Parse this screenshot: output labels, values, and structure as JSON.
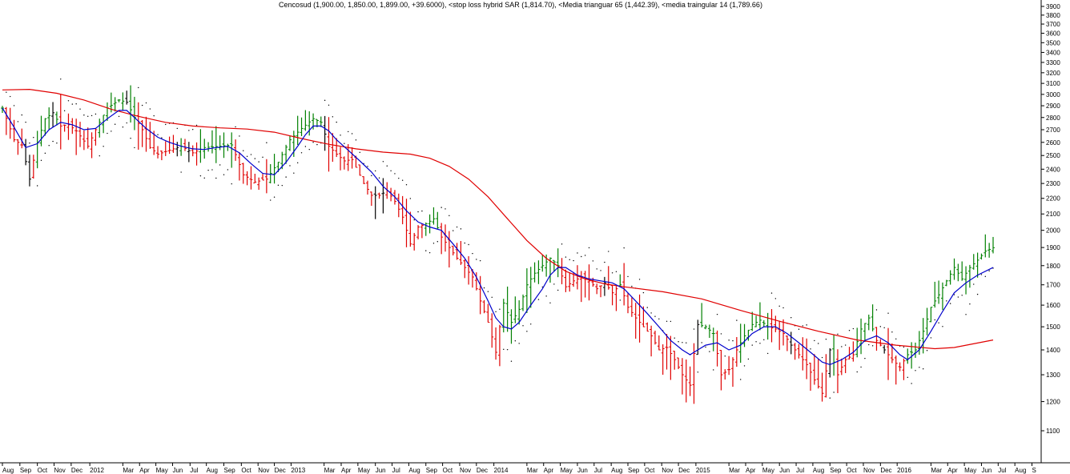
{
  "chart_data": {
    "type": "bar",
    "subtype": "weekly OHLC bars",
    "title": "Cencosud (1,900.00, 1,850.00, 1,899.00, +39.6000), <stop loss hybrid SAR (1,814.70), <Media trianguar 65 (1,442.39), <media traingular 14 (1,789.66)",
    "ylim": [
      1000,
      3950
    ],
    "y_scale": "log",
    "y_ticks": [
      1100,
      1200,
      1300,
      1400,
      1500,
      1600,
      1700,
      1800,
      1900,
      2000,
      2100,
      2200,
      2300,
      2400,
      2500,
      2600,
      2700,
      2800,
      2900,
      3000,
      3100,
      3200,
      3300,
      3400,
      3500,
      3600,
      3700,
      3800,
      3900
    ],
    "grid": false,
    "axis_position": "right",
    "x_labels": [
      {
        "w": 0,
        "label": "Aug"
      },
      {
        "w": 4.5,
        "label": "Sep"
      },
      {
        "w": 9,
        "label": "Oct"
      },
      {
        "w": 13.3,
        "label": "Nov"
      },
      {
        "w": 17.7,
        "label": "Dec"
      },
      {
        "w": 22.5,
        "label": "2012"
      },
      {
        "w": 31,
        "label": "Mar"
      },
      {
        "w": 35.3,
        "label": "Apr"
      },
      {
        "w": 39.5,
        "label": "May"
      },
      {
        "w": 43.8,
        "label": "Jun"
      },
      {
        "w": 48.3,
        "label": "Jul"
      },
      {
        "w": 52.5,
        "label": "Aug"
      },
      {
        "w": 57,
        "label": "Sep"
      },
      {
        "w": 61.5,
        "label": "Oct"
      },
      {
        "w": 65.8,
        "label": "Nov"
      },
      {
        "w": 70,
        "label": "Dec"
      },
      {
        "w": 74.3,
        "label": "2013"
      },
      {
        "w": 82.8,
        "label": "Mar"
      },
      {
        "w": 87.2,
        "label": "Apr"
      },
      {
        "w": 91.5,
        "label": "May"
      },
      {
        "w": 96,
        "label": "Jun"
      },
      {
        "w": 100.3,
        "label": "Jul"
      },
      {
        "w": 104.6,
        "label": "Aug"
      },
      {
        "w": 109,
        "label": "Sep"
      },
      {
        "w": 113.3,
        "label": "Oct"
      },
      {
        "w": 117.7,
        "label": "Nov"
      },
      {
        "w": 122,
        "label": "Dec"
      },
      {
        "w": 126.5,
        "label": "2014"
      },
      {
        "w": 135,
        "label": "Mar"
      },
      {
        "w": 139.3,
        "label": "Apr"
      },
      {
        "w": 143.6,
        "label": "May"
      },
      {
        "w": 148,
        "label": "Jun"
      },
      {
        "w": 152.3,
        "label": "Jul"
      },
      {
        "w": 156.7,
        "label": "Aug"
      },
      {
        "w": 161,
        "label": "Sep"
      },
      {
        "w": 165.3,
        "label": "Oct"
      },
      {
        "w": 169.7,
        "label": "Nov"
      },
      {
        "w": 174,
        "label": "Dec"
      },
      {
        "w": 178.5,
        "label": "2015"
      },
      {
        "w": 187,
        "label": "Mar"
      },
      {
        "w": 191.3,
        "label": "Apr"
      },
      {
        "w": 195.6,
        "label": "May"
      },
      {
        "w": 200,
        "label": "Jun"
      },
      {
        "w": 204.3,
        "label": "Jul"
      },
      {
        "w": 208.6,
        "label": "Aug"
      },
      {
        "w": 213,
        "label": "Sep"
      },
      {
        "w": 217.3,
        "label": "Oct"
      },
      {
        "w": 221.6,
        "label": "Nov"
      },
      {
        "w": 226,
        "label": "Dec"
      },
      {
        "w": 230.3,
        "label": "2016"
      },
      {
        "w": 239,
        "label": "Mar"
      },
      {
        "w": 243.3,
        "label": "Apr"
      },
      {
        "w": 247.6,
        "label": "May"
      },
      {
        "w": 252,
        "label": "Jun"
      },
      {
        "w": 256.3,
        "label": "Jul"
      },
      {
        "w": 260.6,
        "label": "Aug"
      },
      {
        "w": 265,
        "label": "S"
      }
    ],
    "series": [
      {
        "name": "Cencosud",
        "kind": "ohlc",
        "colors": {
          "up": "#008000",
          "down": "#e00000",
          "neutral": "#000000"
        },
        "anchors": [
          [
            0,
            2880
          ],
          [
            3,
            2620
          ],
          [
            5,
            2580
          ],
          [
            7,
            2330
          ],
          [
            9,
            2600
          ],
          [
            11,
            2790
          ],
          [
            13,
            2840
          ],
          [
            15,
            2730
          ],
          [
            17,
            2740
          ],
          [
            19,
            2690
          ],
          [
            22,
            2570
          ],
          [
            24,
            2700
          ],
          [
            27,
            2880
          ],
          [
            30,
            2950
          ],
          [
            32,
            2930
          ],
          [
            34,
            2800
          ],
          [
            36,
            2700
          ],
          [
            38,
            2560
          ],
          [
            40,
            2510
          ],
          [
            43,
            2540
          ],
          [
            46,
            2570
          ],
          [
            49,
            2520
          ],
          [
            52,
            2560
          ],
          [
            56,
            2570
          ],
          [
            59,
            2580
          ],
          [
            62,
            2360
          ],
          [
            65,
            2310
          ],
          [
            68,
            2330
          ],
          [
            71,
            2450
          ],
          [
            74,
            2620
          ],
          [
            77,
            2710
          ],
          [
            80,
            2790
          ],
          [
            82,
            2760
          ],
          [
            84,
            2570
          ],
          [
            86,
            2510
          ],
          [
            88,
            2460
          ],
          [
            90,
            2470
          ],
          [
            93,
            2300
          ],
          [
            95,
            2220
          ],
          [
            97,
            2220
          ],
          [
            99,
            2250
          ],
          [
            101,
            2180
          ],
          [
            103,
            2080
          ],
          [
            105,
            1920
          ],
          [
            107,
            2020
          ],
          [
            109,
            2040
          ],
          [
            111,
            2070
          ],
          [
            113,
            1960
          ],
          [
            115,
            1900
          ],
          [
            117,
            1840
          ],
          [
            119,
            1790
          ],
          [
            121,
            1740
          ],
          [
            123,
            1620
          ],
          [
            125,
            1520
          ],
          [
            127,
            1390
          ],
          [
            129,
            1610
          ],
          [
            131,
            1520
          ],
          [
            133,
            1580
          ],
          [
            135,
            1700
          ],
          [
            137,
            1760
          ],
          [
            139,
            1800
          ],
          [
            141,
            1840
          ],
          [
            143,
            1800
          ],
          [
            145,
            1690
          ],
          [
            147,
            1720
          ],
          [
            149,
            1740
          ],
          [
            151,
            1720
          ],
          [
            153,
            1680
          ],
          [
            155,
            1710
          ],
          [
            157,
            1660
          ],
          [
            159,
            1700
          ],
          [
            161,
            1590
          ],
          [
            163,
            1540
          ],
          [
            165,
            1500
          ],
          [
            167,
            1460
          ],
          [
            169,
            1400
          ],
          [
            171,
            1410
          ],
          [
            173,
            1360
          ],
          [
            175,
            1300
          ],
          [
            177,
            1260
          ],
          [
            179,
            1510
          ],
          [
            181,
            1500
          ],
          [
            183,
            1470
          ],
          [
            185,
            1300
          ],
          [
            187,
            1320
          ],
          [
            189,
            1400
          ],
          [
            191,
            1460
          ],
          [
            193,
            1510
          ],
          [
            195,
            1530
          ],
          [
            197,
            1500
          ],
          [
            199,
            1490
          ],
          [
            201,
            1470
          ],
          [
            203,
            1420
          ],
          [
            205,
            1380
          ],
          [
            207,
            1340
          ],
          [
            209,
            1280
          ],
          [
            211,
            1230
          ],
          [
            213,
            1400
          ],
          [
            215,
            1300
          ],
          [
            217,
            1360
          ],
          [
            219,
            1380
          ],
          [
            221,
            1490
          ],
          [
            223,
            1540
          ],
          [
            225,
            1440
          ],
          [
            227,
            1400
          ],
          [
            229,
            1360
          ],
          [
            231,
            1330
          ],
          [
            233,
            1380
          ],
          [
            235,
            1400
          ],
          [
            237,
            1480
          ],
          [
            239,
            1590
          ],
          [
            241,
            1650
          ],
          [
            243,
            1720
          ],
          [
            245,
            1790
          ],
          [
            247,
            1730
          ],
          [
            249,
            1790
          ],
          [
            251,
            1830
          ],
          [
            253,
            1880
          ],
          [
            255,
            1899
          ]
        ]
      },
      {
        "name": "stop loss hybrid SAR",
        "kind": "dots",
        "color": "#000000",
        "last": 1814.7
      },
      {
        "name": "Media trianguar 65",
        "kind": "line",
        "color": "#e00000",
        "last": 1442.39,
        "points": [
          [
            0,
            3040
          ],
          [
            7,
            3045
          ],
          [
            14,
            3010
          ],
          [
            21,
            2950
          ],
          [
            28,
            2870
          ],
          [
            35,
            2810
          ],
          [
            42,
            2760
          ],
          [
            49,
            2730
          ],
          [
            56,
            2715
          ],
          [
            63,
            2705
          ],
          [
            70,
            2680
          ],
          [
            77,
            2630
          ],
          [
            84,
            2585
          ],
          [
            91,
            2550
          ],
          [
            98,
            2525
          ],
          [
            105,
            2510
          ],
          [
            110,
            2480
          ],
          [
            115,
            2420
          ],
          [
            120,
            2330
          ],
          [
            125,
            2210
          ],
          [
            130,
            2070
          ],
          [
            135,
            1940
          ],
          [
            140,
            1840
          ],
          [
            145,
            1770
          ],
          [
            150,
            1730
          ],
          [
            155,
            1705
          ],
          [
            160,
            1690
          ],
          [
            170,
            1665
          ],
          [
            180,
            1630
          ],
          [
            190,
            1575
          ],
          [
            200,
            1525
          ],
          [
            210,
            1480
          ],
          [
            220,
            1442
          ],
          [
            230,
            1420
          ],
          [
            240,
            1405
          ],
          [
            245,
            1410
          ],
          [
            255,
            1442
          ]
        ]
      },
      {
        "name": "media traingular 14",
        "kind": "line",
        "color": "#0000cc",
        "last": 1789.66,
        "points": [
          [
            0,
            2880
          ],
          [
            3,
            2720
          ],
          [
            6,
            2560
          ],
          [
            9,
            2590
          ],
          [
            12,
            2700
          ],
          [
            15,
            2760
          ],
          [
            18,
            2740
          ],
          [
            21,
            2700
          ],
          [
            24,
            2710
          ],
          [
            27,
            2790
          ],
          [
            30,
            2860
          ],
          [
            32,
            2860
          ],
          [
            34,
            2800
          ],
          [
            37,
            2710
          ],
          [
            40,
            2640
          ],
          [
            43,
            2600
          ],
          [
            46,
            2570
          ],
          [
            49,
            2550
          ],
          [
            52,
            2545
          ],
          [
            55,
            2560
          ],
          [
            58,
            2570
          ],
          [
            61,
            2520
          ],
          [
            64,
            2440
          ],
          [
            67,
            2370
          ],
          [
            70,
            2360
          ],
          [
            73,
            2450
          ],
          [
            76,
            2570
          ],
          [
            78,
            2660
          ],
          [
            80,
            2730
          ],
          [
            82,
            2730
          ],
          [
            84,
            2690
          ],
          [
            86,
            2620
          ],
          [
            89,
            2540
          ],
          [
            92,
            2460
          ],
          [
            95,
            2380
          ],
          [
            98,
            2280
          ],
          [
            101,
            2210
          ],
          [
            104,
            2120
          ],
          [
            107,
            2050
          ],
          [
            110,
            2020
          ],
          [
            113,
            2000
          ],
          [
            116,
            1920
          ],
          [
            119,
            1840
          ],
          [
            122,
            1740
          ],
          [
            125,
            1620
          ],
          [
            127,
            1540
          ],
          [
            129,
            1500
          ],
          [
            131,
            1490
          ],
          [
            133,
            1520
          ],
          [
            136,
            1600
          ],
          [
            139,
            1680
          ],
          [
            141,
            1750
          ],
          [
            143,
            1790
          ],
          [
            145,
            1790
          ],
          [
            148,
            1750
          ],
          [
            151,
            1730
          ],
          [
            154,
            1720
          ],
          [
            157,
            1710
          ],
          [
            160,
            1680
          ],
          [
            163,
            1620
          ],
          [
            166,
            1560
          ],
          [
            169,
            1500
          ],
          [
            172,
            1440
          ],
          [
            175,
            1400
          ],
          [
            177,
            1380
          ],
          [
            179,
            1400
          ],
          [
            181,
            1420
          ],
          [
            184,
            1430
          ],
          [
            187,
            1400
          ],
          [
            190,
            1420
          ],
          [
            193,
            1470
          ],
          [
            196,
            1500
          ],
          [
            199,
            1500
          ],
          [
            202,
            1470
          ],
          [
            205,
            1430
          ],
          [
            208,
            1390
          ],
          [
            211,
            1350
          ],
          [
            213,
            1340
          ],
          [
            216,
            1360
          ],
          [
            219,
            1390
          ],
          [
            222,
            1440
          ],
          [
            225,
            1460
          ],
          [
            228,
            1430
          ],
          [
            231,
            1380
          ],
          [
            233,
            1360
          ],
          [
            236,
            1400
          ],
          [
            239,
            1480
          ],
          [
            242,
            1570
          ],
          [
            245,
            1660
          ],
          [
            248,
            1710
          ],
          [
            251,
            1750
          ],
          [
            255,
            1790
          ]
        ]
      }
    ]
  }
}
